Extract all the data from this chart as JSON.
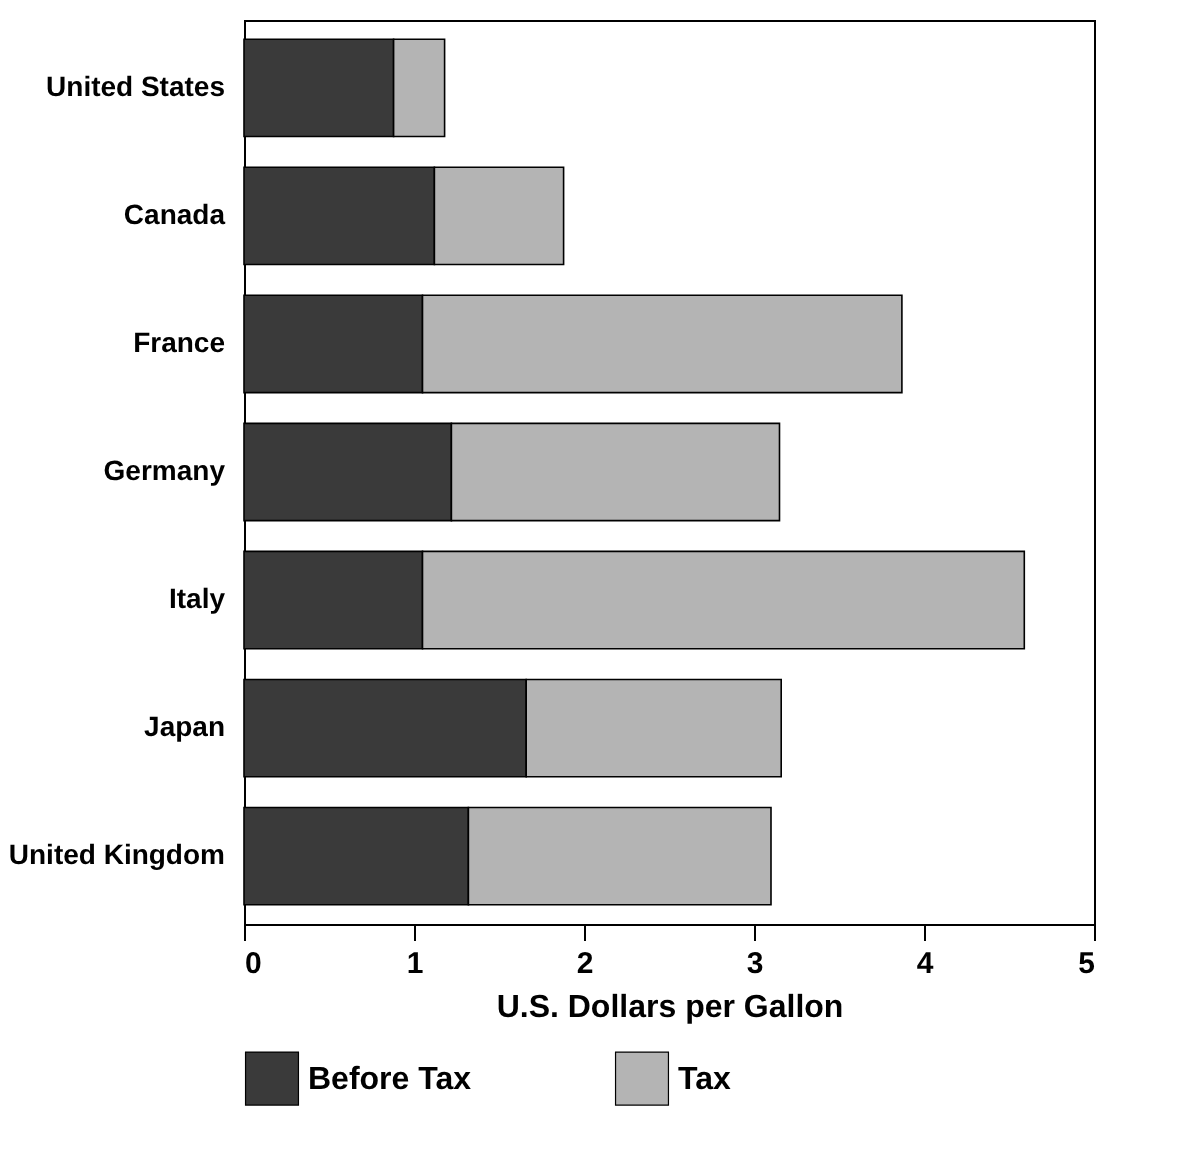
{
  "chart_data": {
    "type": "bar",
    "orientation": "horizontal",
    "stacked": true,
    "categories": [
      "United States",
      "Canada",
      "France",
      "Germany",
      "Italy",
      "Japan",
      "United Kingdom"
    ],
    "series": [
      {
        "name": "Before Tax",
        "color": "#3a3a3a",
        "values": [
          0.88,
          1.12,
          1.05,
          1.22,
          1.05,
          1.66,
          1.32
        ]
      },
      {
        "name": "Tax",
        "color": "#b4b4b4",
        "values": [
          0.3,
          0.76,
          2.82,
          1.93,
          3.54,
          1.5,
          1.78
        ]
      }
    ],
    "xlabel": "U.S. Dollars per Gallon",
    "xlim": [
      0,
      5
    ],
    "xticks": [
      0,
      1,
      2,
      3,
      4,
      5
    ],
    "grid": false,
    "legend": "bottom"
  }
}
